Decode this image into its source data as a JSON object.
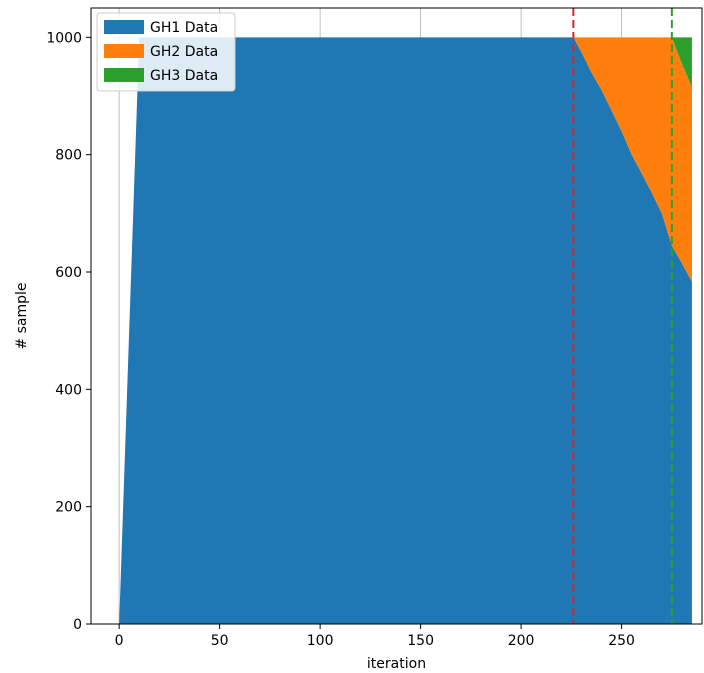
{
  "chart_data": {
    "type": "area",
    "stacked": true,
    "xlabel": "iteration",
    "ylabel": "# sample",
    "xlim": [
      -14,
      290
    ],
    "ylim": [
      0,
      1050
    ],
    "xticks": [
      0,
      50,
      100,
      150,
      200,
      250
    ],
    "yticks": [
      0,
      200,
      400,
      600,
      800,
      1000
    ],
    "grid": "vertical lines only",
    "legend_position": "upper left",
    "x": [
      0,
      10,
      226,
      230,
      235,
      240,
      245,
      250,
      255,
      260,
      265,
      270,
      275,
      280,
      285
    ],
    "series": [
      {
        "name": "GH1 Data",
        "color": "#1f77b4",
        "values": [
          0,
          1000,
          1000,
          975,
          940,
          910,
          875,
          840,
          800,
          768,
          735,
          700,
          645,
          615,
          583
        ]
      },
      {
        "name": "GH2 Data",
        "color": "#ff7f0e",
        "values": [
          0,
          0,
          0,
          25,
          60,
          90,
          125,
          160,
          200,
          232,
          265,
          300,
          355,
          340,
          332
        ]
      },
      {
        "name": "GH3 Data",
        "color": "#2ca02c",
        "values": [
          0,
          0,
          0,
          0,
          0,
          0,
          0,
          0,
          0,
          0,
          0,
          0,
          0,
          45,
          85
        ]
      }
    ],
    "vlines": [
      {
        "x": 226,
        "color": "#d62728",
        "style": "dashed"
      },
      {
        "x": 275,
        "color": "#2ca02c",
        "style": "dashed"
      }
    ]
  }
}
